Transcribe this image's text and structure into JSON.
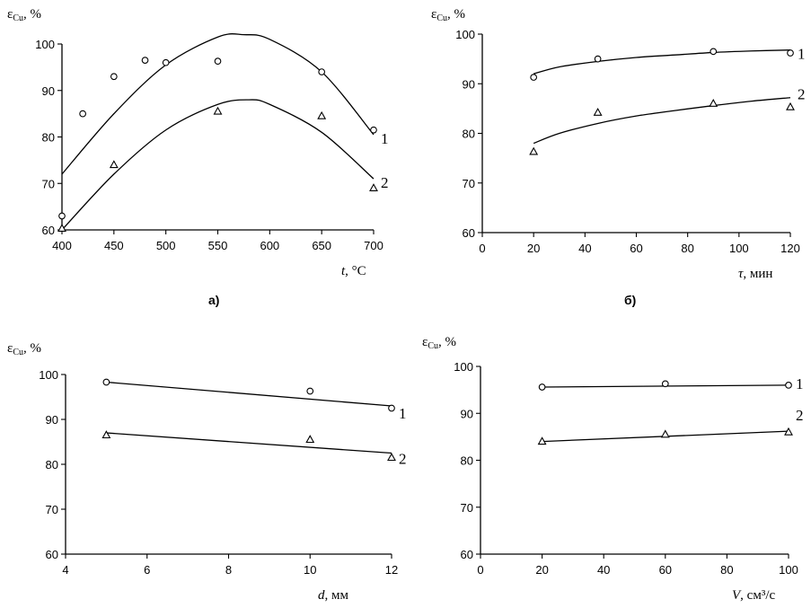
{
  "chart_data": [
    {
      "type": "scatter",
      "panel_label": "а)",
      "ylabel": "ε",
      "ylabel_sub": "Cu",
      "ylabel_unit": ", %",
      "xlabel_var": "t",
      "xlabel_unit": ", °C",
      "xlim": [
        400,
        700
      ],
      "ylim": [
        60,
        100
      ],
      "xticks": [
        400,
        450,
        500,
        550,
        600,
        650,
        700
      ],
      "yticks": [
        60,
        70,
        80,
        90,
        100
      ],
      "series": [
        {
          "name": "1",
          "marker": "circle",
          "points": [
            [
              400,
              63
            ],
            [
              420,
              85
            ],
            [
              450,
              93
            ],
            [
              480,
              96.5
            ],
            [
              500,
              96
            ],
            [
              550,
              96.3
            ],
            [
              650,
              94
            ],
            [
              700,
              81.5
            ]
          ],
          "fit": [
            [
              400,
              72
            ],
            [
              450,
              85
            ],
            [
              500,
              95.5
            ],
            [
              550,
              101.5
            ],
            [
              575,
              102
            ],
            [
              600,
              101
            ],
            [
              650,
              94
            ],
            [
              700,
              80.5
            ]
          ]
        },
        {
          "name": "2",
          "marker": "triangle",
          "points": [
            [
              400,
              60.3
            ],
            [
              450,
              74
            ],
            [
              550,
              85.5
            ],
            [
              650,
              84.5
            ],
            [
              700,
              69
            ]
          ],
          "fit": [
            [
              400,
              60
            ],
            [
              450,
              72
            ],
            [
              500,
              81.5
            ],
            [
              550,
              87
            ],
            [
              580,
              88
            ],
            [
              600,
              87
            ],
            [
              650,
              81
            ],
            [
              700,
              71
            ]
          ]
        }
      ]
    },
    {
      "type": "scatter",
      "panel_label": "б)",
      "ylabel": "ε",
      "ylabel_sub": "Cu",
      "ylabel_unit": ", %",
      "xlabel_var": "τ",
      "xlabel_unit": ", мин",
      "xlim": [
        0,
        120
      ],
      "ylim": [
        60,
        100
      ],
      "xticks": [
        0,
        20,
        40,
        60,
        80,
        100,
        120
      ],
      "yticks": [
        60,
        70,
        80,
        90,
        100
      ],
      "series": [
        {
          "name": "1",
          "marker": "circle",
          "points": [
            [
              20,
              91.3
            ],
            [
              45,
              95
            ],
            [
              90,
              96.5
            ],
            [
              120,
              96.2
            ]
          ],
          "fit": [
            [
              20,
              92
            ],
            [
              30,
              93.4
            ],
            [
              45,
              94.5
            ],
            [
              60,
              95.3
            ],
            [
              75,
              95.8
            ],
            [
              90,
              96.3
            ],
            [
              105,
              96.6
            ],
            [
              120,
              96.8
            ]
          ]
        },
        {
          "name": "2",
          "marker": "triangle",
          "points": [
            [
              20,
              76.3
            ],
            [
              45,
              84.2
            ],
            [
              90,
              86
            ],
            [
              120,
              85.3
            ]
          ],
          "fit": [
            [
              20,
              78
            ],
            [
              30,
              80
            ],
            [
              45,
              82
            ],
            [
              60,
              83.5
            ],
            [
              75,
              84.6
            ],
            [
              90,
              85.6
            ],
            [
              105,
              86.5
            ],
            [
              120,
              87.2
            ]
          ]
        }
      ]
    },
    {
      "type": "scatter",
      "panel_label": "",
      "ylabel": "ε",
      "ylabel_sub": "Cu",
      "ylabel_unit": ", %",
      "xlabel_var": "d",
      "xlabel_unit": ", мм",
      "xlim": [
        4,
        12
      ],
      "ylim": [
        60,
        100
      ],
      "xticks": [
        4,
        6,
        8,
        10,
        12
      ],
      "yticks": [
        60,
        70,
        80,
        90,
        100
      ],
      "series": [
        {
          "name": "1",
          "marker": "circle",
          "points": [
            [
              5,
              98.3
            ],
            [
              10,
              96.3
            ],
            [
              12,
              92.5
            ]
          ],
          "fit": [
            [
              5,
              98.3
            ],
            [
              12,
              93
            ]
          ]
        },
        {
          "name": "2",
          "marker": "triangle",
          "points": [
            [
              5,
              86.5
            ],
            [
              10,
              85.5
            ],
            [
              12,
              81.5
            ]
          ],
          "fit": [
            [
              5,
              87
            ],
            [
              12,
              82.5
            ]
          ]
        }
      ]
    },
    {
      "type": "scatter",
      "panel_label": "",
      "ylabel": "ε",
      "ylabel_sub": "Cu",
      "ylabel_unit": ", %",
      "xlabel_var": "V",
      "xlabel_unit": ", см³/с",
      "xlim": [
        0,
        100
      ],
      "ylim": [
        60,
        100
      ],
      "xticks": [
        0,
        20,
        40,
        60,
        80,
        100
      ],
      "yticks": [
        60,
        70,
        80,
        90,
        100
      ],
      "series": [
        {
          "name": "1",
          "marker": "circle",
          "points": [
            [
              20,
              95.6
            ],
            [
              60,
              96.3
            ],
            [
              100,
              96
            ]
          ],
          "fit": [
            [
              20,
              95.6
            ],
            [
              100,
              96
            ]
          ]
        },
        {
          "name": "2",
          "marker": "triangle",
          "points": [
            [
              20,
              84
            ],
            [
              60,
              85.5
            ],
            [
              100,
              86
            ]
          ],
          "fit": [
            [
              20,
              84
            ],
            [
              100,
              86.2
            ]
          ]
        }
      ]
    }
  ]
}
